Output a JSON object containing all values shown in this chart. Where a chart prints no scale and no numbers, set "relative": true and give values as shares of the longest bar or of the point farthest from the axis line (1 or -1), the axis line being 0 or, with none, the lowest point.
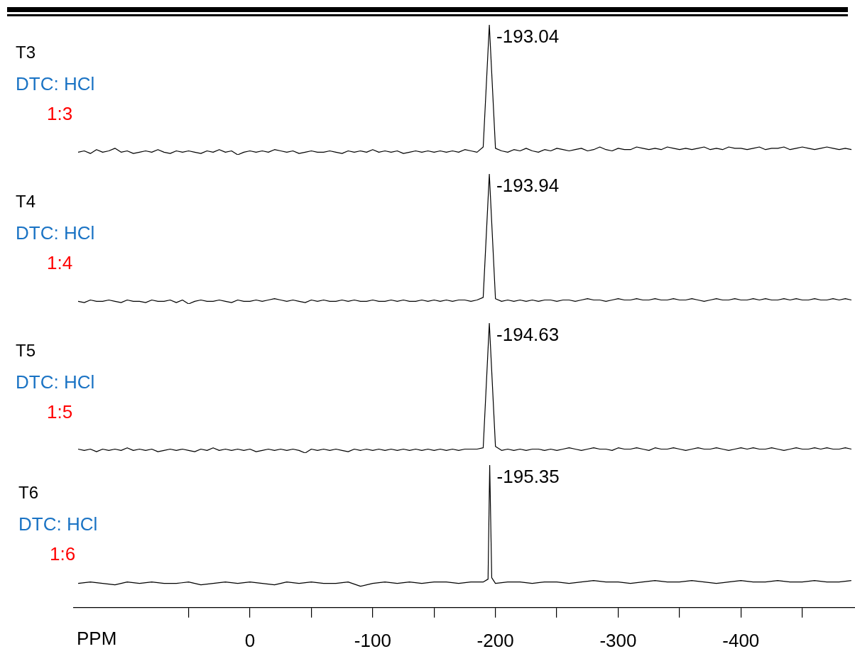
{
  "chart_data": [
    {
      "type": "line",
      "title": "T3",
      "subtitle": "DTC: HCl",
      "annotations": [
        "1:3",
        "-193.04"
      ],
      "relative": true,
      "marker": "none",
      "tick_labels": false,
      "categories": [
        null,
        null,
        null,
        null,
        null,
        null,
        null,
        null,
        null,
        null,
        null,
        null,
        null,
        null,
        null,
        null,
        null,
        null,
        null,
        null,
        null,
        null,
        null,
        null,
        null,
        null,
        null,
        null,
        null,
        null,
        null,
        null,
        null,
        null,
        null,
        null,
        null,
        null,
        null,
        null,
        null,
        null,
        null,
        null,
        null,
        null,
        null,
        null,
        null,
        null,
        null,
        null,
        null,
        null,
        null,
        null,
        null,
        null,
        null,
        null,
        null,
        null,
        null,
        null,
        null,
        null,
        null,
        null,
        null,
        null,
        null,
        null,
        null,
        null,
        null,
        null,
        null,
        null,
        null,
        null,
        null,
        null,
        null,
        null,
        null,
        null,
        null,
        null,
        null,
        null,
        null,
        null,
        null,
        null,
        null,
        null,
        null,
        null,
        null,
        null,
        null,
        null,
        null,
        null,
        null,
        null,
        null,
        null,
        null,
        null,
        null,
        null,
        null,
        null,
        null,
        null,
        null,
        null,
        null,
        null,
        null,
        null,
        null,
        null,
        null,
        null,
        null
      ],
      "series": [
        {
          "color": "#000000",
          "values": [
            0.02,
            0.03,
            0.01,
            0.04,
            0.02,
            0.03,
            0.05,
            0.02,
            0.03,
            0.01,
            0.02,
            0.03,
            0.02,
            0.04,
            0.02,
            0.01,
            0.03,
            0.02,
            0.03,
            0.02,
            0.01,
            0.03,
            0.02,
            0.04,
            0.02,
            0.03,
            0,
            0.02,
            0.03,
            0.02,
            0.03,
            0.02,
            0.04,
            0.03,
            0.02,
            0.03,
            0.01,
            0.02,
            0.03,
            0.02,
            0.02,
            0.03,
            0.02,
            0.01,
            0.03,
            0.02,
            0.03,
            0.02,
            0.04,
            0.02,
            0.03,
            0.02,
            0.03,
            0.01,
            0.02,
            0.03,
            0.02,
            0.03,
            0.02,
            0.03,
            0.02,
            0.03,
            0.02,
            0.04,
            0.03,
            0.02,
            0.06,
            1,
            0.05,
            0.03,
            0.02,
            0.04,
            0.03,
            0.05,
            0.03,
            0.02,
            0.04,
            0.03,
            0.05,
            0.04,
            0.03,
            0.04,
            0.05,
            0.03,
            0.04,
            0.06,
            0.04,
            0.03,
            0.05,
            0.04,
            0.04,
            0.06,
            0.05,
            0.04,
            0.05,
            0.04,
            0.06,
            0.05,
            0.04,
            0.05,
            0.04,
            0.05,
            0.06,
            0.04,
            0.05,
            0.04,
            0.06,
            0.05,
            0.05,
            0.04,
            0.05,
            0.06,
            0.04,
            0.05,
            0.05,
            0.06,
            0.04,
            0.05,
            0.06,
            0.05,
            0.04,
            0.05,
            0.06,
            0.05,
            0.04,
            0.05,
            0.04
          ]
        }
      ]
    },
    {
      "type": "line",
      "title": "T4",
      "subtitle": "DTC: HCl",
      "annotations": [
        "1:4",
        "-193.94"
      ],
      "relative": true,
      "marker": "none",
      "tick_labels": false,
      "categories": [
        null,
        null,
        null,
        null,
        null,
        null,
        null,
        null,
        null,
        null,
        null,
        null,
        null,
        null,
        null,
        null,
        null,
        null,
        null,
        null,
        null,
        null,
        null,
        null,
        null,
        null,
        null,
        null,
        null,
        null,
        null,
        null,
        null,
        null,
        null,
        null,
        null,
        null,
        null,
        null,
        null,
        null,
        null,
        null,
        null,
        null,
        null,
        null,
        null,
        null,
        null,
        null,
        null,
        null,
        null,
        null,
        null,
        null,
        null,
        null,
        null,
        null,
        null,
        null,
        null,
        null,
        null,
        null,
        null,
        null,
        null,
        null,
        null,
        null,
        null,
        null,
        null,
        null,
        null,
        null,
        null,
        null,
        null,
        null,
        null,
        null,
        null,
        null,
        null,
        null,
        null,
        null,
        null,
        null,
        null,
        null,
        null,
        null,
        null,
        null,
        null,
        null,
        null,
        null,
        null,
        null,
        null,
        null,
        null,
        null,
        null,
        null,
        null,
        null,
        null,
        null,
        null,
        null,
        null,
        null,
        null,
        null,
        null,
        null,
        null,
        null,
        null
      ],
      "series": [
        {
          "color": "#000000",
          "values": [
            0.02,
            0.01,
            0.03,
            0.02,
            0.02,
            0.03,
            0.02,
            0.01,
            0.03,
            0.02,
            0.02,
            0.01,
            0.03,
            0.02,
            0.02,
            0.03,
            0.01,
            0.03,
            0,
            0.02,
            0.03,
            0.02,
            0.02,
            0.03,
            0.02,
            0.01,
            0.03,
            0.02,
            0.02,
            0.03,
            0.02,
            0.03,
            0.04,
            0.03,
            0.02,
            0.03,
            0.02,
            0.01,
            0.03,
            0.02,
            0.03,
            0.02,
            0.02,
            0.03,
            0.02,
            0.03,
            0.02,
            0.02,
            0.03,
            0.02,
            0.02,
            0.03,
            0.02,
            0.03,
            0.02,
            0.02,
            0.03,
            0.02,
            0.03,
            0.02,
            0.03,
            0.02,
            0.03,
            0.03,
            0.02,
            0.03,
            0.05,
            1,
            0.04,
            0.02,
            0.03,
            0.02,
            0.03,
            0.02,
            0.03,
            0.02,
            0.03,
            0.03,
            0.02,
            0.03,
            0.03,
            0.02,
            0.03,
            0.04,
            0.03,
            0.03,
            0.02,
            0.03,
            0.04,
            0.03,
            0.03,
            0.04,
            0.03,
            0.03,
            0.04,
            0.03,
            0.03,
            0.04,
            0.03,
            0.03,
            0.04,
            0.03,
            0.02,
            0.03,
            0.04,
            0.03,
            0.03,
            0.04,
            0.03,
            0.03,
            0.04,
            0.03,
            0.04,
            0.03,
            0.03,
            0.04,
            0.03,
            0.04,
            0.03,
            0.03,
            0.04,
            0.03,
            0.03,
            0.04,
            0.03,
            0.04,
            0.03
          ]
        }
      ]
    },
    {
      "type": "line",
      "title": "T5",
      "subtitle": "DTC: HCl",
      "annotations": [
        "1:5",
        "-194.63"
      ],
      "relative": true,
      "marker": "none",
      "tick_labels": false,
      "categories": [
        null,
        null,
        null,
        null,
        null,
        null,
        null,
        null,
        null,
        null,
        null,
        null,
        null,
        null,
        null,
        null,
        null,
        null,
        null,
        null,
        null,
        null,
        null,
        null,
        null,
        null,
        null,
        null,
        null,
        null,
        null,
        null,
        null,
        null,
        null,
        null,
        null,
        null,
        null,
        null,
        null,
        null,
        null,
        null,
        null,
        null,
        null,
        null,
        null,
        null,
        null,
        null,
        null,
        null,
        null,
        null,
        null,
        null,
        null,
        null,
        null,
        null,
        null,
        null,
        null,
        null,
        null,
        null,
        null,
        null,
        null,
        null,
        null,
        null,
        null,
        null,
        null,
        null,
        null,
        null,
        null,
        null,
        null,
        null,
        null,
        null,
        null,
        null,
        null,
        null,
        null,
        null,
        null,
        null,
        null,
        null,
        null,
        null,
        null,
        null,
        null,
        null,
        null,
        null,
        null,
        null,
        null,
        null,
        null,
        null,
        null,
        null,
        null,
        null,
        null,
        null,
        null,
        null,
        null,
        null,
        null,
        null,
        null,
        null,
        null,
        null,
        null
      ],
      "series": [
        {
          "color": "#000000",
          "values": [
            0.03,
            0.02,
            0.03,
            0.01,
            0.03,
            0.02,
            0.03,
            0.02,
            0.04,
            0.02,
            0.03,
            0.02,
            0.03,
            0.01,
            0.02,
            0.03,
            0.02,
            0.03,
            0.02,
            0.01,
            0.03,
            0.02,
            0.04,
            0.02,
            0.03,
            0.02,
            0.03,
            0.02,
            0.03,
            0.01,
            0.02,
            0.03,
            0.02,
            0.03,
            0.02,
            0.03,
            0.02,
            0,
            0.03,
            0.02,
            0.03,
            0.02,
            0.03,
            0.02,
            0.01,
            0.03,
            0.02,
            0.03,
            0.02,
            0.03,
            0.02,
            0.03,
            0.02,
            0.03,
            0.02,
            0.03,
            0.02,
            0.03,
            0.02,
            0.03,
            0.02,
            0.03,
            0.02,
            0.03,
            0.03,
            0.03,
            0.04,
            1,
            0.05,
            0.02,
            0.03,
            0.02,
            0.03,
            0.02,
            0.03,
            0.03,
            0.02,
            0.03,
            0.02,
            0.03,
            0.04,
            0.03,
            0.02,
            0.03,
            0.04,
            0.03,
            0.03,
            0.02,
            0.04,
            0.03,
            0.03,
            0.04,
            0.03,
            0.02,
            0.04,
            0.03,
            0.03,
            0.04,
            0.03,
            0.02,
            0.03,
            0.04,
            0.03,
            0.03,
            0.04,
            0.03,
            0.02,
            0.03,
            0.04,
            0.03,
            0.04,
            0.03,
            0.03,
            0.04,
            0.03,
            0.02,
            0.03,
            0.04,
            0.03,
            0.03,
            0.04,
            0.03,
            0.04,
            0.03,
            0.03,
            0.04,
            0.03
          ]
        }
      ]
    },
    {
      "type": "line",
      "title": "T6",
      "subtitle": "DTC: HCl",
      "annotations": [
        "1:6",
        {
          "text": "-195.35",
          "x": -195.35,
          "y": 1
        }
      ],
      "relative": true,
      "marker": "none",
      "tick_labels": "x",
      "xlabel": "PPM",
      "xlim": [
        143.5,
        -493
      ],
      "xticks": [
        {
          "value": 50,
          "label": null
        },
        0,
        {
          "value": -50,
          "label": null
        },
        -100,
        {
          "value": -150,
          "label": null
        },
        -200,
        {
          "value": -250,
          "label": null
        },
        -300,
        {
          "value": -350,
          "label": null
        },
        -400,
        {
          "value": -450,
          "label": null
        }
      ],
      "x": [
        140,
        130,
        120,
        110,
        100,
        90,
        80,
        70,
        60,
        50,
        40,
        30,
        20,
        10,
        0,
        -10,
        -20,
        -30,
        -40,
        -50,
        -60,
        -70,
        -80,
        -90,
        -100,
        -110,
        -120,
        -130,
        -140,
        -150,
        -160,
        -170,
        -180,
        -190,
        -194,
        -195.35,
        -197,
        -200,
        -210,
        -220,
        -230,
        -240,
        -250,
        -260,
        -270,
        -280,
        -290,
        -300,
        -310,
        -320,
        -330,
        -340,
        -350,
        -360,
        -370,
        -380,
        -390,
        -400,
        -410,
        -420,
        -430,
        -440,
        -450,
        -460,
        -470,
        -480,
        -490
      ],
      "series": [
        {
          "color": "#000000",
          "values": [
            0.17,
            0.18,
            0.17,
            0.16,
            0.18,
            0.17,
            0.18,
            0.17,
            0.17,
            0.18,
            0.16,
            0.17,
            0.18,
            0.17,
            0.18,
            0.17,
            0.16,
            0.18,
            0.17,
            0.18,
            0.17,
            0.17,
            0.18,
            0.15,
            0.17,
            0.18,
            0.17,
            0.18,
            0.17,
            0.18,
            0.18,
            0.17,
            0.18,
            0.18,
            0.2,
            1,
            0.21,
            0.17,
            0.18,
            0.18,
            0.17,
            0.18,
            0.18,
            0.17,
            0.18,
            0.19,
            0.18,
            0.18,
            0.17,
            0.18,
            0.19,
            0.18,
            0.18,
            0.19,
            0.18,
            0.17,
            0.18,
            0.19,
            0.18,
            0.18,
            0.19,
            0.18,
            0.18,
            0.19,
            0.18,
            0.18,
            0.19
          ]
        }
      ]
    }
  ]
}
